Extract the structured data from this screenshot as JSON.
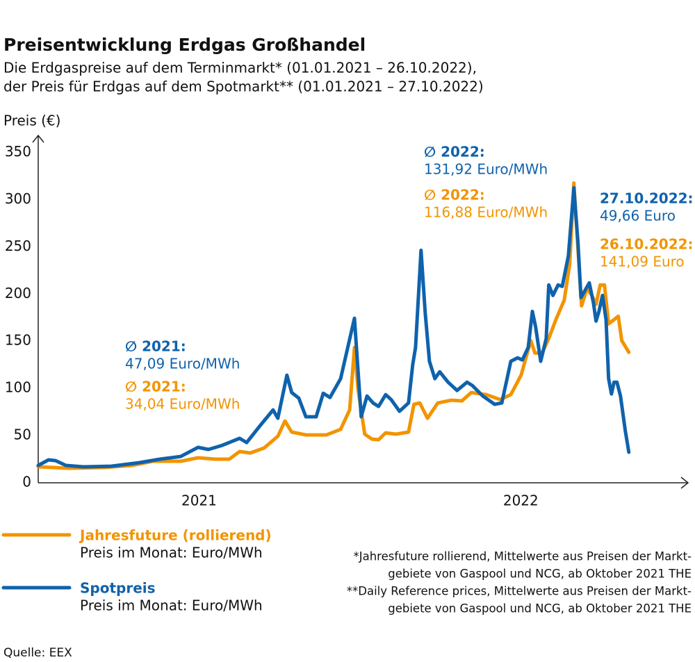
{
  "chart_data": {
    "type": "line",
    "title": "Preisentwicklung Erdgas Großhandel",
    "subtitle": [
      "Die Erdgaspreise auf dem Terminmarkt* (01.01.2021 – 26.10.2022),",
      "der Preis für Erdgas auf dem Spotmarkt** (01.01.2021 – 27.10.2022)"
    ],
    "y_label": "Preis (€)",
    "xlim": [
      2021,
      2023.02
    ],
    "xticks": [
      {
        "value": 2021.5,
        "label": "2021"
      },
      {
        "value": 2022.5,
        "label": "2022"
      }
    ],
    "ylim": [
      0,
      368
    ],
    "yticks": [
      0,
      50,
      100,
      150,
      200,
      250,
      300,
      350
    ],
    "grid": false,
    "series": [
      {
        "name": "Jahresfuture (rollierend)",
        "unit_label": "Preis im Monat: Euro/MWh",
        "color": "#f29400",
        "x": [
          2021.0,
          2021.097,
          2021.205,
          2021.292,
          2021.356,
          2021.443,
          2021.497,
          2021.551,
          2021.594,
          2021.626,
          2021.659,
          2021.702,
          2021.745,
          2021.767,
          2021.788,
          2021.832,
          2021.896,
          2021.94,
          2021.968,
          2021.983,
          2021.994,
          2022.015,
          2022.037,
          2022.058,
          2022.08,
          2022.112,
          2022.151,
          2022.168,
          2022.186,
          2022.21,
          2022.242,
          2022.285,
          2022.317,
          2022.346,
          2022.393,
          2022.436,
          2022.469,
          2022.501,
          2022.531,
          2022.544,
          2022.566,
          2022.587,
          2022.609,
          2022.635,
          2022.652,
          2022.665,
          2022.678,
          2022.689,
          2022.706,
          2022.721,
          2022.734,
          2022.747,
          2022.76,
          2022.773,
          2022.79,
          2022.803,
          2022.814,
          2022.836
        ],
        "values": [
          16.9,
          15.4,
          16.2,
          18.4,
          22.8,
          22.8,
          26.5,
          25.0,
          25.0,
          33.1,
          31.6,
          36.8,
          49.3,
          65.4,
          53.7,
          50.7,
          50.7,
          56.6,
          77.2,
          143.4,
          99.3,
          51.5,
          46.3,
          45.6,
          52.9,
          51.5,
          53.7,
          83.1,
          84.6,
          68.4,
          84.6,
          87.5,
          86.8,
          95.6,
          93.4,
          88.2,
          93.4,
          114.0,
          150.7,
          137.5,
          137.5,
          152.9,
          172.8,
          193.4,
          231.6,
          317.6,
          246.3,
          187.5,
          205.9,
          198.5,
          189.0,
          209.6,
          209.6,
          168.4,
          172.8,
          176.5,
          150.7,
          138.2
        ]
      },
      {
        "name": "Spotpreis",
        "unit_label": "Preis im Monat: Euro/MWh",
        "color": "#0f62ac",
        "x": [
          2021.0,
          2021.032,
          2021.054,
          2021.086,
          2021.14,
          2021.227,
          2021.313,
          2021.378,
          2021.443,
          2021.497,
          2021.529,
          2021.572,
          2021.626,
          2021.648,
          2021.691,
          2021.73,
          2021.745,
          2021.773,
          2021.788,
          2021.81,
          2021.832,
          2021.864,
          2021.886,
          2021.907,
          2021.94,
          2021.983,
          2022.004,
          2022.022,
          2022.041,
          2022.058,
          2022.08,
          2022.097,
          2022.123,
          2022.151,
          2022.164,
          2022.173,
          2022.19,
          2022.203,
          2022.216,
          2022.233,
          2022.248,
          2022.274,
          2022.302,
          2022.333,
          2022.35,
          2022.382,
          2022.419,
          2022.441,
          2022.469,
          2022.49,
          2022.505,
          2022.523,
          2022.536,
          2022.546,
          2022.562,
          2022.579,
          2022.587,
          2022.6,
          2022.616,
          2022.629,
          2022.648,
          2022.665,
          2022.678,
          2022.687,
          2022.713,
          2022.726,
          2022.734,
          2022.743,
          2022.754,
          2022.765,
          2022.773,
          2022.782,
          2022.79,
          2022.799,
          2022.81,
          2022.825,
          2022.836
        ],
        "values": [
          18.4,
          24.3,
          23.5,
          18.4,
          16.9,
          17.6,
          21.3,
          25.0,
          27.9,
          37.5,
          35.3,
          39.7,
          47.1,
          42.6,
          61.0,
          77.2,
          68.4,
          114.0,
          95.6,
          89.7,
          69.9,
          69.9,
          94.9,
          90.4,
          110.3,
          174.3,
          69.9,
          91.9,
          84.6,
          80.9,
          93.4,
          88.2,
          75.7,
          84.6,
          125.0,
          143.4,
          246.3,
          180.1,
          128.7,
          110.3,
          117.6,
          106.6,
          97.8,
          106.6,
          102.9,
          91.9,
          83.1,
          84.6,
          128.7,
          132.4,
          130.1,
          143.4,
          181.6,
          165.4,
          128.7,
          152.9,
          209.6,
          198.5,
          209.6,
          208.1,
          240.4,
          312.5,
          253.7,
          196.3,
          211.8,
          190.4,
          171.3,
          181.6,
          198.5,
          172.8,
          110.3,
          94.1,
          106.6,
          106.6,
          91.9,
          55.1,
          32.4
        ]
      }
    ],
    "annotations": [
      {
        "label": "∅ 2021:",
        "text": "47,09 Euro/MWh",
        "color": "#0f62ac"
      },
      {
        "label": "∅ 2021:",
        "text": "34,04 Euro/MWh",
        "color": "#f29400"
      },
      {
        "label": "∅ 2022:",
        "text": "131,92 Euro/MWh",
        "color": "#0f62ac"
      },
      {
        "label": "∅ 2022:",
        "text": "116,88 Euro/MWh",
        "color": "#f29400"
      },
      {
        "label": "27.10.2022:",
        "text": "49,66 Euro",
        "color": "#0f62ac"
      },
      {
        "label": "26.10.2022:",
        "text": "141,09 Euro",
        "color": "#f29400"
      }
    ],
    "footnotes": [
      "*Jahresfuture rollierend, Mittelwerte aus Preisen der Markt-",
      "gebiete von Gaspool und NCG, ab Oktober 2021 THE",
      "**Daily Reference prices, Mittelwerte aus Preisen der Markt-",
      "gebiete von Gaspool und NCG, ab Oktober 2021 THE"
    ],
    "source": "Quelle: EEX"
  }
}
